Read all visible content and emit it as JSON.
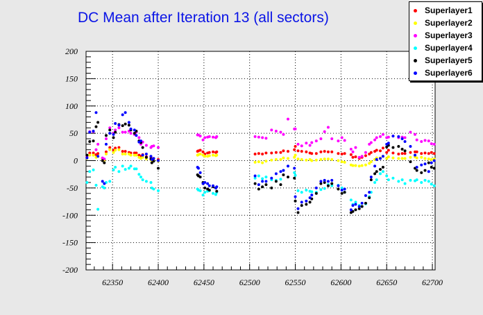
{
  "chart_data": {
    "type": "scatter",
    "title": "DC Mean after Iteration 13 (all sectors)",
    "xlim": [
      62321,
      62703
    ],
    "ylim": [
      -200,
      200
    ],
    "xticks": [
      62350,
      62400,
      62450,
      62500,
      62550,
      62600,
      62650,
      62700
    ],
    "yticks": [
      -200,
      -150,
      -100,
      -50,
      0,
      50,
      100,
      150,
      200
    ],
    "grid": true,
    "legend_position": "top-right",
    "x": [
      62322,
      62325,
      62329,
      62332,
      62334,
      62339,
      62341,
      62343,
      62347,
      62351,
      62353,
      62357,
      62361,
      62364,
      62368,
      62370,
      62374,
      62376,
      62379,
      62381,
      62383,
      62387,
      62392,
      62393,
      62395,
      62400,
      62443,
      62444,
      62446,
      62449,
      62451,
      62454,
      62456,
      62460,
      62463,
      62464,
      62506,
      62510,
      62514,
      62518,
      62524,
      62529,
      62534,
      62537,
      62542,
      62549,
      62550,
      62553,
      62557,
      62562,
      62566,
      62568,
      62573,
      62578,
      62582,
      62586,
      62590,
      62597,
      62601,
      62604,
      62611,
      62613,
      62616,
      62620,
      62623,
      62627,
      62631,
      62633,
      62637,
      62639,
      62643,
      62646,
      62650,
      62652,
      62657,
      62663,
      62667,
      62670,
      62676,
      62681,
      62683,
      62688,
      62692,
      62696,
      62699,
      62702
    ],
    "series": [
      {
        "name": "Superlayer1",
        "color": "#ff0000",
        "values": [
          7,
          14,
          14,
          11,
          13,
          4,
          2,
          16,
          24,
          19,
          23,
          24,
          17,
          17,
          15,
          14,
          14,
          14,
          10,
          8,
          11,
          7,
          6,
          3,
          4,
          2,
          17,
          18,
          19,
          16,
          12,
          14,
          15,
          16,
          15,
          16,
          12,
          13,
          12,
          14,
          14,
          15,
          15,
          18,
          17,
          20,
          26,
          18,
          17,
          16,
          14,
          13,
          13,
          16,
          17,
          16,
          16,
          13,
          12,
          13,
          11,
          6,
          7,
          4,
          6,
          9,
          12,
          15,
          17,
          19,
          18,
          23,
          15,
          19,
          14,
          12,
          13,
          13,
          15,
          16,
          16,
          13,
          14,
          13,
          15,
          13
        ]
      },
      {
        "name": "Superlayer2",
        "color": "#ffff00",
        "values": [
          4,
          10,
          10,
          6,
          8,
          3,
          1,
          12,
          20,
          15,
          19,
          20,
          12,
          12,
          12,
          10,
          10,
          10,
          6,
          4,
          6,
          3,
          2,
          0,
          1,
          -1,
          10,
          11,
          12,
          10,
          8,
          8,
          9,
          10,
          9,
          10,
          -3,
          -2,
          -4,
          -1,
          1,
          2,
          2,
          5,
          4,
          6,
          10,
          3,
          2,
          1,
          2,
          0,
          1,
          2,
          3,
          3,
          2,
          0,
          -2,
          -3,
          -8,
          -9,
          -9,
          -10,
          -9,
          -8,
          -5,
          -2,
          2,
          5,
          5,
          8,
          4,
          7,
          5,
          4,
          4,
          4,
          6,
          7,
          5,
          6,
          4,
          3,
          2,
          3
        ]
      },
      {
        "name": "Superlayer3",
        "color": "#ff00ff",
        "values": [
          8,
          53,
          53,
          20,
          30,
          5,
          3,
          40,
          60,
          50,
          56,
          60,
          52,
          52,
          54,
          50,
          48,
          52,
          42,
          30,
          34,
          28,
          24,
          26,
          27,
          24,
          47,
          47,
          45,
          38,
          42,
          43,
          44,
          43,
          42,
          44,
          44,
          43,
          42,
          41,
          56,
          54,
          52,
          48,
          76,
          58,
          58,
          30,
          27,
          32,
          28,
          33,
          36,
          40,
          53,
          61,
          40,
          36,
          42,
          37,
          21,
          16,
          24,
          6,
          8,
          15,
          30,
          33,
          38,
          42,
          44,
          48,
          42,
          43,
          45,
          42,
          43,
          42,
          52,
          48,
          38,
          35,
          37,
          36,
          31,
          30
        ]
      },
      {
        "name": "Superlayer4",
        "color": "#00ffff",
        "values": [
          -40,
          -20,
          -17,
          -45,
          -89,
          -48,
          -50,
          -40,
          -38,
          -17,
          -12,
          -20,
          -10,
          -16,
          -14,
          -10,
          -15,
          -15,
          -25,
          -30,
          -35,
          -38,
          -40,
          -50,
          -52,
          -55,
          -52,
          -54,
          -55,
          -63,
          -58,
          -56,
          -55,
          -60,
          -62,
          -58,
          -32,
          -28,
          -33,
          -30,
          -35,
          -36,
          -34,
          -18,
          -10,
          -22,
          -27,
          -55,
          -58,
          -54,
          -56,
          -57,
          -58,
          -53,
          -51,
          -44,
          -46,
          -45,
          -50,
          -58,
          -72,
          -80,
          -76,
          -82,
          -84,
          -79,
          -66,
          -58,
          -40,
          -35,
          -24,
          -20,
          -28,
          -35,
          -32,
          -38,
          -35,
          -42,
          -36,
          -37,
          -35,
          -40,
          -36,
          -38,
          -43,
          -46
        ]
      },
      {
        "name": "Superlayer5",
        "color": "#000000",
        "values": [
          10,
          35,
          36,
          62,
          70,
          0,
          -4,
          46,
          56,
          42,
          52,
          66,
          64,
          67,
          65,
          56,
          50,
          54,
          36,
          33,
          24,
          6,
          3,
          -4,
          -1,
          -14,
          -26,
          -28,
          -30,
          -40,
          -50,
          -52,
          -54,
          -48,
          -50,
          -56,
          -42,
          -52,
          -48,
          -44,
          -50,
          -38,
          -44,
          -26,
          -30,
          -32,
          -74,
          -95,
          -82,
          -80,
          -76,
          -70,
          -60,
          -42,
          -40,
          -46,
          -42,
          -52,
          -60,
          -58,
          -95,
          -93,
          -90,
          -88,
          -84,
          -78,
          -68,
          -35,
          -24,
          -20,
          -16,
          -12,
          25,
          28,
          24,
          26,
          21,
          18,
          -2,
          -14,
          -18,
          -22,
          -18,
          -4,
          -12,
          -14
        ]
      },
      {
        "name": "Superlayer6",
        "color": "#0000ff",
        "values": [
          5,
          52,
          54,
          88,
          8,
          -38,
          -42,
          30,
          50,
          48,
          68,
          65,
          84,
          88,
          70,
          58,
          56,
          46,
          34,
          36,
          10,
          12,
          8,
          2,
          4,
          0,
          -12,
          -14,
          -22,
          -42,
          -40,
          -42,
          -46,
          -46,
          -50,
          -48,
          -28,
          -44,
          -38,
          -38,
          -32,
          -24,
          -20,
          -18,
          -10,
          -14,
          -66,
          -88,
          -76,
          -74,
          -68,
          -63,
          -50,
          -38,
          -36,
          -38,
          -36,
          -46,
          -54,
          -52,
          -90,
          -82,
          -80,
          -84,
          -78,
          -64,
          -58,
          -30,
          -10,
          2,
          4,
          8,
          30,
          32,
          45,
          44,
          40,
          35,
          26,
          10,
          -12,
          -8,
          -6,
          -20,
          -4,
          0
        ]
      }
    ]
  }
}
